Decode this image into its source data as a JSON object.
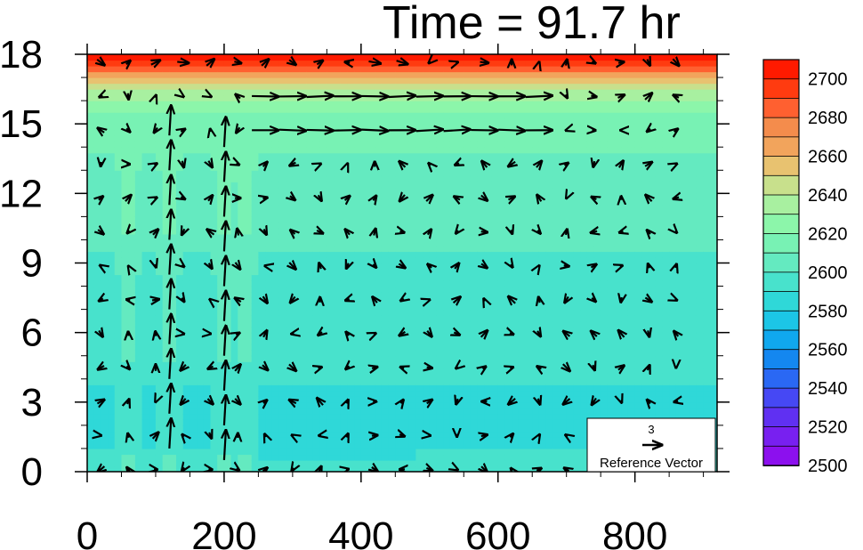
{
  "title": "Time = 91.7 hr",
  "chart_data": {
    "type": "heatmap",
    "title": "Time = 91.7 hr",
    "xlabel": "",
    "ylabel": "",
    "xlim": [
      0,
      920
    ],
    "ylim": [
      0,
      18
    ],
    "x_ticks": [
      "0",
      "200",
      "400",
      "600",
      "800"
    ],
    "y_ticks": [
      "0",
      "3",
      "6",
      "9",
      "12",
      "15",
      "18"
    ],
    "colorbar": {
      "levels": [
        2700,
        2680,
        2660,
        2640,
        2620,
        2600,
        2580,
        2560,
        2540,
        2520,
        2500
      ],
      "labels": [
        "2700",
        "2680",
        "2660",
        "2640",
        "2620",
        "2600",
        "2580",
        "2560",
        "2540",
        "2520",
        "2500"
      ],
      "colors": [
        "#ff1a00",
        "#ff3b10",
        "#ff6030",
        "#f48c4c",
        "#f2a45c",
        "#e8c270",
        "#c8e08c",
        "#a8f0a0",
        "#8cf6aa",
        "#78f2b4",
        "#64eac0",
        "#48e2cc",
        "#2fd8d8",
        "#1cc6e6",
        "#10a8ee",
        "#1487f0",
        "#2a68f4",
        "#4648f4",
        "#6030f2",
        "#7820f0",
        "#8c10ee"
      ]
    },
    "field_profile": {
      "heights_km": [
        0,
        1,
        3,
        6,
        9,
        12,
        14,
        15.5,
        16.3,
        17,
        17.5,
        18
      ],
      "values": [
        2590,
        2584,
        2583,
        2588,
        2594,
        2600,
        2606,
        2614,
        2630,
        2660,
        2690,
        2705
      ],
      "note_x_columns_warm": [
        60,
        120,
        200,
        230
      ]
    },
    "vectors": {
      "reference_label": "Reference Vector",
      "reference_magnitude": "3",
      "grid_x_spacing": 20,
      "grid_y_spacing": 0.75
    }
  }
}
